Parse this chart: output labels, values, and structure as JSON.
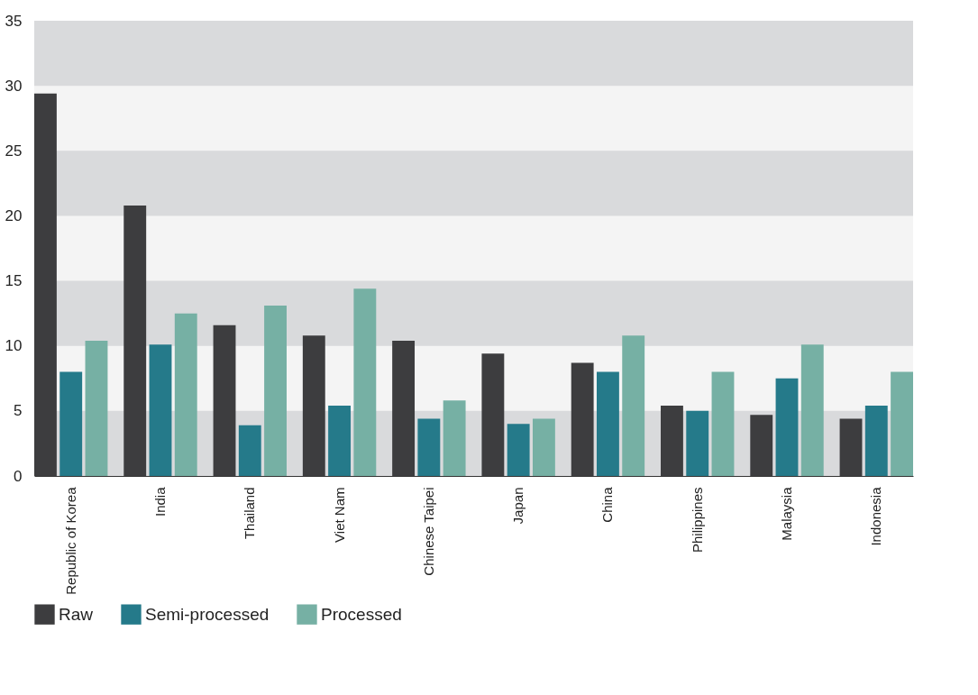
{
  "chart_data": {
    "type": "bar",
    "categories": [
      "Republic of Korea",
      "India",
      "Thailand",
      "Viet Nam",
      "Chinese Taipei",
      "Japan",
      "China",
      "Philippines",
      "Malaysia",
      "Indonesia"
    ],
    "series": [
      {
        "name": "Raw",
        "color": "#3d3d3f",
        "values": [
          29.4,
          20.8,
          11.6,
          10.8,
          10.4,
          9.4,
          8.7,
          5.4,
          4.7,
          4.4
        ]
      },
      {
        "name": "Semi-processed",
        "color": "#257a8a",
        "values": [
          8.0,
          10.1,
          3.9,
          5.4,
          4.4,
          4.0,
          8.0,
          5.0,
          7.5,
          5.4
        ]
      },
      {
        "name": "Processed",
        "color": "#76b0a4",
        "values": [
          10.4,
          12.5,
          13.1,
          14.4,
          5.8,
          4.4,
          10.8,
          8.0,
          10.1,
          8.0
        ]
      }
    ],
    "ylim": [
      0,
      35
    ],
    "yticks": [
      0,
      5,
      10,
      15,
      20,
      25,
      30,
      35
    ],
    "bands": [
      {
        "axis": "y",
        "from": 0,
        "to": 5,
        "color": "#d9dadc"
      },
      {
        "axis": "y",
        "from": 10,
        "to": 15,
        "color": "#d9dadc"
      },
      {
        "axis": "y",
        "from": 20,
        "to": 25,
        "color": "#d9dadc"
      },
      {
        "axis": "y",
        "from": 30,
        "to": 35,
        "color": "#d9dadc"
      }
    ],
    "legend": "bottom"
  }
}
